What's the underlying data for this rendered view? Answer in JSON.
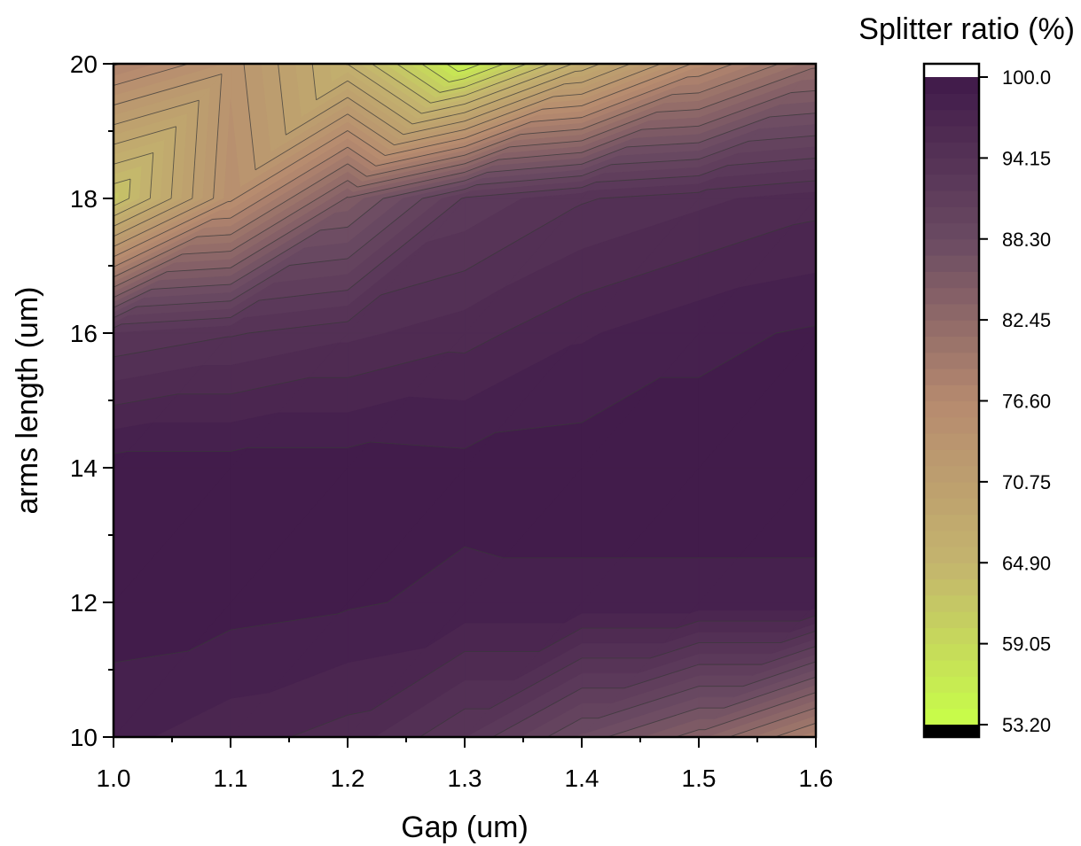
{
  "chart_data": {
    "type": "heatmap",
    "subtype": "filled-contour",
    "title": "",
    "xlabel": "Gap (um)",
    "ylabel": "arms length (um)",
    "colorbar_title": "Splitter ratio (%)",
    "x": [
      1.0,
      1.1,
      1.2,
      1.3,
      1.4,
      1.5,
      1.6
    ],
    "y": [
      10,
      12,
      14,
      16,
      18,
      20
    ],
    "xlim": [
      1.0,
      1.6
    ],
    "ylim": [
      10,
      20
    ],
    "x_tick_labels": [
      "1.0",
      "1.1",
      "1.2",
      "1.3",
      "1.4",
      "1.5",
      "1.6"
    ],
    "y_tick_labels": [
      "10",
      "12",
      "14",
      "16",
      "18",
      "20"
    ],
    "z": [
      [
        98.0,
        97.0,
        96.0,
        93.0,
        88.0,
        84.0,
        78.0
      ],
      [
        99.5,
        99.3,
        99.0,
        98.5,
        98.5,
        98.5,
        98.5
      ],
      [
        99.5,
        99.5,
        99.5,
        99.3,
        99.5,
        99.5,
        99.5
      ],
      [
        93.0,
        94.0,
        95.0,
        96.0,
        97.5,
        98.5,
        99.0
      ],
      [
        62.0,
        75.0,
        85.0,
        92.0,
        94.0,
        95.0,
        96.0
      ],
      [
        78.0,
        74.0,
        66.0,
        55.0,
        67.0,
        76.0,
        82.0
      ]
    ],
    "z_range": [
      53.2,
      100.0
    ],
    "colorbar_ticks": [
      "100.0",
      "94.15",
      "88.30",
      "82.45",
      "76.60",
      "70.75",
      "64.90",
      "59.05",
      "53.20"
    ],
    "colormap": [
      "#c8ff48",
      "#c4b46e",
      "#b68a6f",
      "#6a4a62",
      "#401a4a"
    ],
    "over_color": "#ffffff",
    "under_color": "#000000",
    "contour_lines": true
  }
}
